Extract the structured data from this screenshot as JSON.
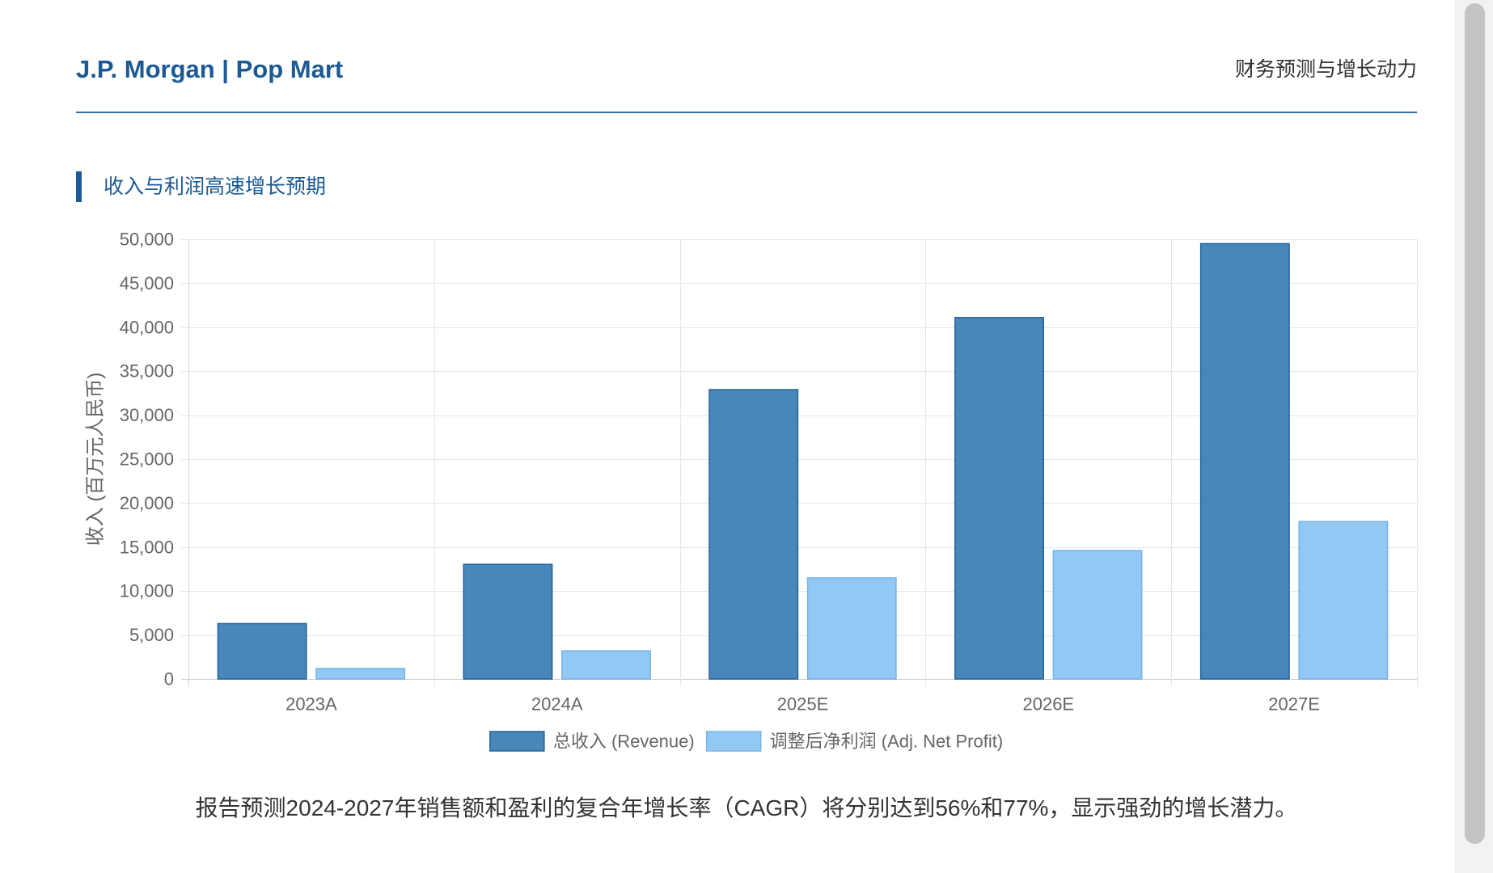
{
  "header": {
    "title": "J.P. Morgan | Pop Mart",
    "subtitle": "财务预测与增长动力"
  },
  "colors": {
    "brand": "#1b5a94",
    "rule": "#2d6da6",
    "grid": "#e6e6e6",
    "tick_text": "#666666"
  },
  "chart_data": {
    "type": "bar",
    "title": "收入与利润高速增长预期",
    "categories": [
      "2023A",
      "2024A",
      "2025E",
      "2026E",
      "2027E"
    ],
    "series": [
      {
        "name": "总收入 (Revenue)",
        "values": [
          6301,
          13038,
          32900,
          41100,
          49500
        ],
        "color": "#4887ba",
        "border": "#23609a"
      },
      {
        "name": "调整后净利润 (Adj. Net Profit)",
        "values": [
          1191,
          3200,
          11500,
          14600,
          17900
        ],
        "color": "#92c8f4",
        "border": "#76b2e6"
      }
    ],
    "ylabel": "收入 (百万元人民币)",
    "ylim": [
      0,
      50000
    ],
    "yticks": [
      0,
      5000,
      10000,
      15000,
      20000,
      25000,
      30000,
      35000,
      40000,
      45000,
      50000
    ],
    "ytick_labels": [
      "0",
      "5,000",
      "10,000",
      "15,000",
      "20,000",
      "25,000",
      "30,000",
      "35,000",
      "40,000",
      "45,000",
      "50,000"
    ],
    "grid": true,
    "legend": "bottom"
  },
  "footer": {
    "note": "报告预测2024-2027年销售额和盈利的复合年增长率（CAGR）将分别达到56%和77%，显示强劲的增长潜力。"
  }
}
